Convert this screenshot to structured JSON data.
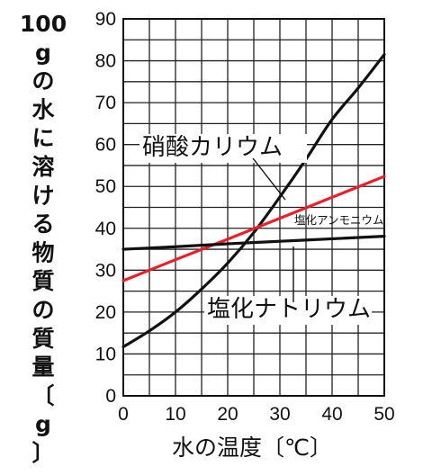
{
  "chart_data": {
    "type": "line",
    "ylabel": "100gの水に溶ける物質の質量〔g〕",
    "xlabel": "水の温度〔℃〕",
    "xlim": [
      0,
      50
    ],
    "ylim": [
      0,
      90
    ],
    "x_ticks": [
      0,
      10,
      20,
      30,
      40,
      50
    ],
    "y_ticks": [
      0,
      10,
      20,
      30,
      40,
      50,
      60,
      70,
      80,
      90
    ],
    "grid": true,
    "series": [
      {
        "name": "硝酸カリウム",
        "color": "#111111",
        "x": [
          0,
          5,
          10,
          15,
          20,
          25,
          30,
          35,
          40,
          45,
          50
        ],
        "y": [
          11.7,
          15.5,
          20.0,
          25.5,
          31.7,
          39.0,
          47.5,
          56.5,
          66.0,
          73.5,
          81.5
        ]
      },
      {
        "name": "塩化アンモニウム",
        "color": "#e8202a",
        "x": [
          0,
          10,
          20,
          30,
          40,
          50
        ],
        "y": [
          27.5,
          32.5,
          37.4,
          42.4,
          47.4,
          52.4
        ]
      },
      {
        "name": "塩化ナトリウム",
        "color": "#111111",
        "x": [
          0,
          10,
          20,
          30,
          40,
          50
        ],
        "y": [
          35.0,
          35.6,
          36.3,
          36.9,
          37.5,
          38.1
        ]
      }
    ]
  }
}
